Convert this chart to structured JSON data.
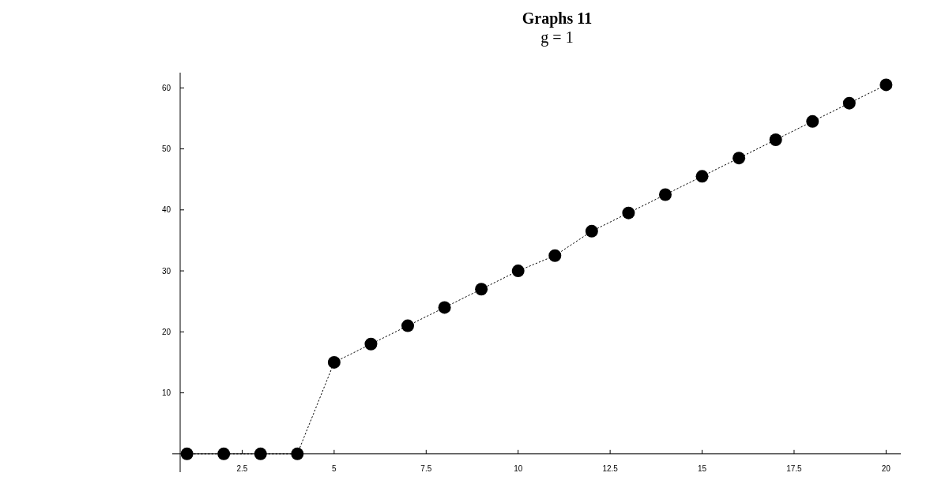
{
  "chart_data": {
    "type": "line",
    "title": "Graphs 11",
    "subtitle": "g = 1",
    "x": [
      1,
      2,
      3,
      4,
      5,
      6,
      7,
      8,
      9,
      10,
      11,
      12,
      13,
      14,
      15,
      16,
      17,
      18,
      19,
      20
    ],
    "series": [
      {
        "color": "#000000",
        "values": [
          0,
          0,
          0,
          0,
          15,
          18,
          21,
          24,
          27,
          30,
          32.5,
          36.5,
          39.5,
          42.5,
          45.5,
          48.5,
          51.5,
          54.5,
          57.5,
          60.5
        ]
      }
    ],
    "xlim": [
      0.6,
      20.4
    ],
    "xticks": [
      2.5,
      5,
      7.5,
      10,
      12.5,
      15,
      17.5,
      20
    ],
    "ylim": [
      -3,
      62.5
    ],
    "yticks": [
      10,
      20,
      30,
      40,
      50,
      60
    ],
    "grid": false,
    "marker": "circle",
    "line_style": "dotted"
  }
}
